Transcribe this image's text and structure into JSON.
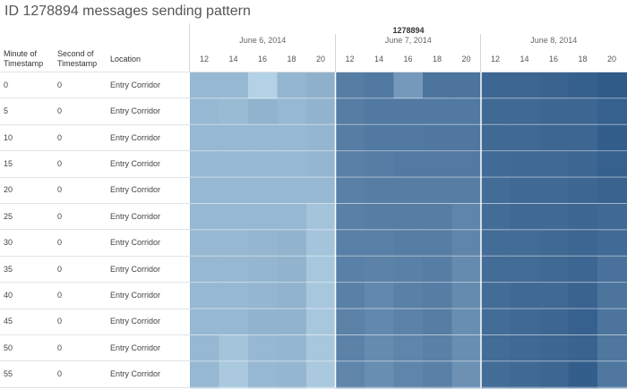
{
  "title": "ID 1278894 messages sending pattern",
  "column_headers": {
    "minute": "Minute of Timestamp",
    "minute_line1": "Minute of",
    "minute_line2": "Timestamp",
    "second_line1": "Second of",
    "second_line2": "Timestamp",
    "location": "Location"
  },
  "chart_data": {
    "type": "heatmap",
    "title": "ID 1278894 messages sending pattern",
    "group_label": "1278894",
    "dates": [
      "June 6, 2014",
      "June 7, 2014",
      "June 8, 2014"
    ],
    "hours": [
      "12",
      "14",
      "16",
      "18",
      "20"
    ],
    "rows": [
      {
        "minute": "0",
        "second": "0",
        "location": "Entry Corridor",
        "values": [
          [
            0.3,
            0.3,
            0.12,
            0.32,
            0.36
          ],
          [
            0.72,
            0.75,
            0.52,
            0.78,
            0.78
          ],
          [
            0.88,
            0.88,
            0.9,
            0.93,
            0.96
          ]
        ]
      },
      {
        "minute": "5",
        "second": "0",
        "location": "Entry Corridor",
        "values": [
          [
            0.3,
            0.28,
            0.34,
            0.3,
            0.34
          ],
          [
            0.72,
            0.75,
            0.75,
            0.75,
            0.75
          ],
          [
            0.86,
            0.86,
            0.88,
            0.88,
            0.92
          ]
        ]
      },
      {
        "minute": "10",
        "second": "0",
        "location": "Entry Corridor",
        "values": [
          [
            0.3,
            0.3,
            0.3,
            0.3,
            0.32
          ],
          [
            0.72,
            0.75,
            0.75,
            0.76,
            0.76
          ],
          [
            0.86,
            0.86,
            0.88,
            0.88,
            0.94
          ]
        ]
      },
      {
        "minute": "15",
        "second": "0",
        "location": "Entry Corridor",
        "values": [
          [
            0.3,
            0.3,
            0.3,
            0.3,
            0.32
          ],
          [
            0.7,
            0.72,
            0.74,
            0.74,
            0.74
          ],
          [
            0.85,
            0.86,
            0.86,
            0.88,
            0.92
          ]
        ]
      },
      {
        "minute": "20",
        "second": "0",
        "location": "Entry Corridor",
        "values": [
          [
            0.3,
            0.3,
            0.3,
            0.3,
            0.3
          ],
          [
            0.7,
            0.72,
            0.72,
            0.72,
            0.72
          ],
          [
            0.84,
            0.86,
            0.86,
            0.88,
            0.9
          ]
        ]
      },
      {
        "minute": "25",
        "second": "0",
        "location": "Entry Corridor",
        "values": [
          [
            0.3,
            0.3,
            0.3,
            0.3,
            0.22
          ],
          [
            0.7,
            0.72,
            0.72,
            0.72,
            0.66
          ],
          [
            0.84,
            0.86,
            0.86,
            0.88,
            0.86
          ]
        ]
      },
      {
        "minute": "30",
        "second": "0",
        "location": "Entry Corridor",
        "values": [
          [
            0.3,
            0.3,
            0.32,
            0.34,
            0.22
          ],
          [
            0.7,
            0.7,
            0.72,
            0.72,
            0.66
          ],
          [
            0.84,
            0.84,
            0.86,
            0.88,
            0.85
          ]
        ]
      },
      {
        "minute": "35",
        "second": "0",
        "location": "Entry Corridor",
        "values": [
          [
            0.3,
            0.3,
            0.32,
            0.34,
            0.2
          ],
          [
            0.7,
            0.68,
            0.7,
            0.72,
            0.62
          ],
          [
            0.84,
            0.84,
            0.86,
            0.88,
            0.8
          ]
        ]
      },
      {
        "minute": "40",
        "second": "0",
        "location": "Entry Corridor",
        "values": [
          [
            0.3,
            0.3,
            0.32,
            0.34,
            0.2
          ],
          [
            0.7,
            0.64,
            0.7,
            0.72,
            0.62
          ],
          [
            0.84,
            0.86,
            0.86,
            0.9,
            0.78
          ]
        ]
      },
      {
        "minute": "45",
        "second": "0",
        "location": "Entry Corridor",
        "values": [
          [
            0.3,
            0.3,
            0.34,
            0.34,
            0.2
          ],
          [
            0.68,
            0.64,
            0.68,
            0.72,
            0.6
          ],
          [
            0.84,
            0.86,
            0.88,
            0.92,
            0.78
          ]
        ]
      },
      {
        "minute": "50",
        "second": "0",
        "location": "Entry Corridor",
        "values": [
          [
            0.3,
            0.22,
            0.3,
            0.32,
            0.2
          ],
          [
            0.68,
            0.62,
            0.66,
            0.7,
            0.6
          ],
          [
            0.84,
            0.86,
            0.88,
            0.9,
            0.76
          ]
        ]
      },
      {
        "minute": "55",
        "second": "0",
        "location": "Entry Corridor",
        "values": [
          [
            0.3,
            0.18,
            0.3,
            0.32,
            0.18
          ],
          [
            0.66,
            0.6,
            0.66,
            0.7,
            0.58
          ],
          [
            0.84,
            0.86,
            0.88,
            0.94,
            0.76
          ]
        ]
      }
    ],
    "color_scale": {
      "low": "#c6e3f3",
      "high": "#2a5585"
    }
  }
}
